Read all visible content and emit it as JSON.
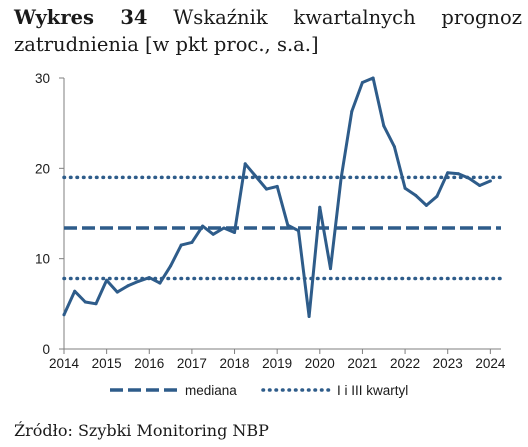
{
  "title": {
    "label": "Wykres 34",
    "text": "Wskaźnik kwartalnych prognoz zatrudnienia [w pkt proc., s.a.]"
  },
  "source": "Źródło: Szybki Monitoring NBP",
  "colors": {
    "series": "#2e5c8a",
    "axis": "#7f7f7f"
  },
  "chart_data": {
    "type": "line",
    "title": "Wskaźnik kwartalnych prognoz zatrudnienia [w pkt proc., s.a.]",
    "xlabel": "",
    "ylabel": "",
    "xlim": [
      2014,
      2024.25
    ],
    "ylim": [
      0,
      30
    ],
    "y_ticks": [
      0,
      10,
      20,
      30
    ],
    "x_ticks": [
      2014,
      2015,
      2016,
      2017,
      2018,
      2019,
      2020,
      2021,
      2022,
      2023,
      2024
    ],
    "grid": false,
    "legend_position": "bottom",
    "series": [
      {
        "name": "",
        "style": "solid",
        "x": [
          2014.0,
          2014.25,
          2014.5,
          2014.75,
          2015.0,
          2015.25,
          2015.5,
          2015.75,
          2016.0,
          2016.25,
          2016.5,
          2016.75,
          2017.0,
          2017.25,
          2017.5,
          2017.75,
          2018.0,
          2018.25,
          2018.5,
          2018.75,
          2019.0,
          2019.25,
          2019.5,
          2019.75,
          2020.0,
          2020.25,
          2020.5,
          2020.75,
          2021.0,
          2021.25,
          2021.5,
          2021.75,
          2022.0,
          2022.25,
          2022.5,
          2022.75,
          2023.0,
          2023.25,
          2023.5,
          2023.75,
          2024.0
        ],
        "values": [
          3.8,
          6.4,
          5.2,
          5.0,
          7.6,
          6.3,
          7.0,
          7.5,
          7.9,
          7.3,
          9.2,
          11.5,
          11.8,
          13.6,
          12.7,
          13.4,
          12.9,
          20.5,
          19.1,
          17.7,
          18.0,
          13.7,
          13.1,
          3.6,
          15.7,
          8.9,
          18.9,
          26.3,
          29.5,
          30.0,
          24.7,
          22.4,
          17.8,
          17.0,
          15.9,
          16.9,
          19.5,
          19.4,
          18.9,
          18.1,
          18.6
        ]
      },
      {
        "name": "mediana",
        "style": "dashed",
        "constant": 13.4
      },
      {
        "name": "I i III kwartyl",
        "style": "dotted",
        "constant": 19.0
      },
      {
        "name": "I i III kwartyl",
        "style": "dotted",
        "constant": 7.8
      }
    ]
  }
}
